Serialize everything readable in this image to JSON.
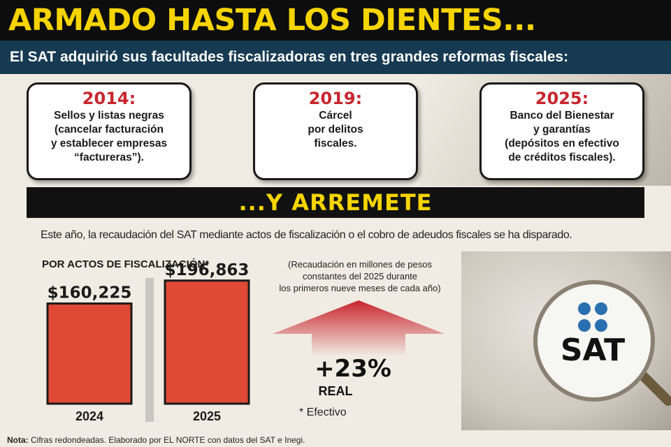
{
  "header": {
    "title": "ARMADO HASTA LOS DIENTES...",
    "subtitle": "El SAT adquirió sus facultades fiscalizadoras en tres grandes reformas fiscales:"
  },
  "reforms": [
    {
      "year": "2014:",
      "description": "Sellos y listas negras\n(cancelar facturación\ny establecer empresas\n“factureras”)."
    },
    {
      "year": "2019:",
      "description": "Cárcel\npor delitos\nfiscales."
    },
    {
      "year": "2025:",
      "description": "Banco del Bienestar\ny garantías\n(depósitos en efectivo\nde créditos fiscales)."
    }
  ],
  "section": {
    "title": "...Y ARREMETE",
    "intro": "Este año, la recaudación del SAT mediante actos de fiscalización o el cobro de adeudos fiscales se ha disparado."
  },
  "chart_data": {
    "type": "bar",
    "title": "POR ACTOS DE FISCALIZACIÓN*",
    "categories": [
      "2024",
      "2025"
    ],
    "values": [
      160225,
      196863
    ],
    "value_labels": [
      "$160,225",
      "$196,863"
    ],
    "ylim": [
      0,
      210000
    ],
    "grid": false,
    "bar_color": "#e04a35",
    "note": "(Recaudación en millones de pesos\nconstantes del 2025 durante\nlos primeros nueve meses de cada año)",
    "change": "+23%",
    "change_label": "REAL",
    "footnote": "* Efectivo"
  },
  "logo": {
    "text": "SAT",
    "dot_color": "#2a6fb0"
  },
  "footer": {
    "label": "Nota:",
    "text": "Cifras redondeadas.  Elaborado por EL NORTE con datos del SAT e Inegi."
  },
  "colors": {
    "accent_yellow": "#f5d400",
    "accent_red": "#c8252d",
    "band_blue": "#163a52"
  }
}
